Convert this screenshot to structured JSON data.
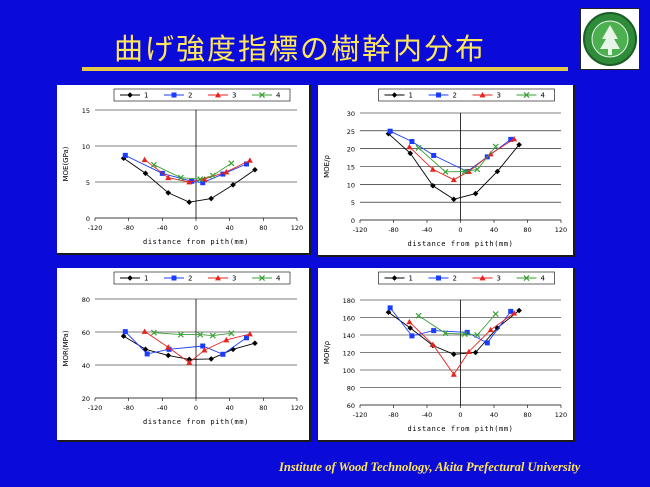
{
  "slide": {
    "title": "曲げ強度指標の樹幹内分布",
    "footer": "Institute of Wood Technology, Akita Prefectural University",
    "title_color": "#ffe65a",
    "background_color": "#0b0bd9",
    "logo_icon": "university-seal-icon"
  },
  "series_style": [
    {
      "name": "1",
      "color": "#000000",
      "marker": "diamond"
    },
    {
      "name": "2",
      "color": "#1a3cff",
      "marker": "square"
    },
    {
      "name": "3",
      "color": "#e8221e",
      "marker": "triangle"
    },
    {
      "name": "4",
      "color": "#3aa035",
      "marker": "cross"
    }
  ],
  "chart_data": [
    {
      "type": "line",
      "xlabel": "distance from pith(mm)",
      "ylabel": "MOE(GPa)",
      "xlim": [
        -120,
        120
      ],
      "ylim": [
        0,
        15
      ],
      "xticks": [
        -120,
        -80,
        -40,
        0,
        40,
        80,
        120
      ],
      "yticks": [
        0,
        5,
        10,
        15
      ],
      "legend": "top",
      "grid": "horizontal",
      "series": [
        {
          "name": "1",
          "x": [
            -86,
            -60,
            -33,
            -8,
            18,
            44,
            70
          ],
          "y": [
            8.3,
            6.2,
            3.5,
            2.2,
            2.7,
            4.6,
            6.7
          ]
        },
        {
          "name": "2",
          "x": [
            -84,
            -40,
            -5,
            8,
            32,
            60
          ],
          "y": [
            8.7,
            6.2,
            5.1,
            4.9,
            6.1,
            7.5
          ]
        },
        {
          "name": "3",
          "x": [
            -61,
            -33,
            -8,
            10,
            36,
            64
          ],
          "y": [
            8.1,
            5.6,
            5.0,
            5.4,
            6.4,
            8.0
          ]
        },
        {
          "name": "4",
          "x": [
            -50,
            -18,
            5,
            20,
            42
          ],
          "y": [
            7.4,
            5.6,
            5.4,
            5.9,
            7.6
          ]
        }
      ]
    },
    {
      "type": "line",
      "xlabel": "distance from pith(mm)",
      "ylabel": "MOE/ρ",
      "xlim": [
        -120,
        120
      ],
      "ylim": [
        0,
        30
      ],
      "xticks": [
        -120,
        -80,
        -40,
        0,
        40,
        80,
        120
      ],
      "yticks": [
        0,
        5,
        10,
        15,
        20,
        25,
        30
      ],
      "legend": "top",
      "grid": "horizontal",
      "series": [
        {
          "name": "1",
          "x": [
            -86,
            -60,
            -33,
            -8,
            18,
            44,
            70
          ],
          "y": [
            24.2,
            18.7,
            9.6,
            5.8,
            7.4,
            13.6,
            21.1
          ]
        },
        {
          "name": "2",
          "x": [
            -84,
            -58,
            -32,
            8,
            32,
            60
          ],
          "y": [
            24.9,
            22.0,
            18.1,
            13.6,
            17.7,
            22.6
          ]
        },
        {
          "name": "3",
          "x": [
            -61,
            -33,
            -8,
            10,
            36,
            64
          ],
          "y": [
            20.5,
            14.2,
            11.3,
            13.6,
            18.5,
            22.7
          ]
        },
        {
          "name": "4",
          "x": [
            -50,
            -18,
            5,
            20,
            42
          ],
          "y": [
            20.2,
            13.5,
            13.6,
            14.2,
            20.6
          ]
        }
      ]
    },
    {
      "type": "line",
      "xlabel": "distance from pith(mm)",
      "ylabel": "MOR(MPa)",
      "xlim": [
        -120,
        120
      ],
      "ylim": [
        20,
        80
      ],
      "xticks": [
        -120,
        -80,
        -40,
        0,
        40,
        80,
        120
      ],
      "yticks": [
        20,
        40,
        60,
        80
      ],
      "legend": "top",
      "grid": "horizontal",
      "series": [
        {
          "name": "1",
          "x": [
            -86,
            -60,
            -33,
            -8,
            18,
            44,
            70
          ],
          "y": [
            57.5,
            49.5,
            45.8,
            43.4,
            43.7,
            49.5,
            53.2
          ]
        },
        {
          "name": "2",
          "x": [
            -84,
            -58,
            -32,
            8,
            32,
            60
          ],
          "y": [
            60.2,
            46.7,
            49.5,
            51.5,
            46.5,
            56.5
          ]
        },
        {
          "name": "3",
          "x": [
            -61,
            -33,
            -8,
            10,
            36,
            64
          ],
          "y": [
            60.3,
            50.8,
            41.5,
            49.0,
            55.2,
            58.8
          ]
        },
        {
          "name": "4",
          "x": [
            -50,
            -18,
            5,
            20,
            42
          ],
          "y": [
            59.6,
            58.4,
            58.4,
            57.8,
            59.2
          ]
        }
      ]
    },
    {
      "type": "line",
      "xlabel": "distance from pith(mm)",
      "ylabel": "MOR/ρ",
      "xlim": [
        -120,
        120
      ],
      "ylim": [
        60,
        180
      ],
      "xticks": [
        -120,
        -80,
        -40,
        0,
        40,
        80,
        120
      ],
      "yticks": [
        60,
        80,
        100,
        120,
        140,
        160,
        180
      ],
      "legend": "top",
      "grid": "horizontal",
      "series": [
        {
          "name": "1",
          "x": [
            -86,
            -60,
            -33,
            -8,
            18,
            44,
            70
          ],
          "y": [
            166,
            148,
            128,
            118,
            120,
            148,
            168
          ]
        },
        {
          "name": "2",
          "x": [
            -84,
            -58,
            -32,
            8,
            32,
            60
          ],
          "y": [
            171,
            139,
            145,
            143,
            131,
            167
          ]
        },
        {
          "name": "3",
          "x": [
            -61,
            -33,
            -8,
            10,
            36,
            64
          ],
          "y": [
            155,
            129,
            95,
            121,
            146,
            165
          ]
        },
        {
          "name": "4",
          "x": [
            -50,
            -18,
            5,
            20,
            42
          ],
          "y": [
            162,
            142,
            141,
            140,
            164
          ]
        }
      ]
    }
  ]
}
